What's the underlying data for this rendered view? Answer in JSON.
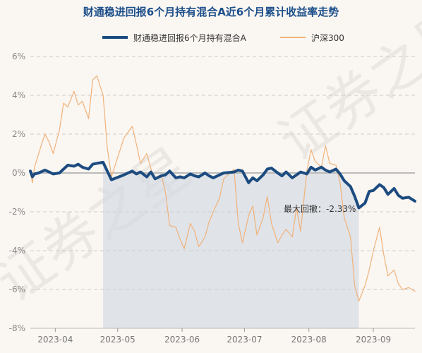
{
  "chart_data": {
    "type": "line",
    "title": "财通稳进回报6个月持有混合A近6个月累计收益率走势",
    "ylim": [
      -8,
      6
    ],
    "y_ticks": [
      "6%",
      "4%",
      "2%",
      "0%",
      "-2%",
      "-4%",
      "-6%",
      "-8%"
    ],
    "y_tick_values": [
      6,
      4,
      2,
      0,
      -2,
      -4,
      -6,
      -8
    ],
    "x_range": [
      "2023-03-20",
      "2023-09-21"
    ],
    "x_ticks": [
      "2023-04",
      "2023-05",
      "2023-06",
      "2023-07",
      "2023-08",
      "2023-09"
    ],
    "x_tick_dates": [
      "2023-04-01",
      "2023-05-01",
      "2023-06-01",
      "2023-07-01",
      "2023-08-01",
      "2023-09-01"
    ],
    "grid": "horizontal dashed",
    "legend_position": "top",
    "drawdown": {
      "label": "最大回撤：-2.33%",
      "start": "2023-04-24",
      "end": "2023-08-25"
    },
    "series": [
      {
        "name": "财通稳进回报6个月持有混合A",
        "color": "#1c4b80",
        "points": [
          [
            "2023-03-20",
            0.1
          ],
          [
            "2023-03-21",
            -0.2
          ],
          [
            "2023-03-22",
            -0.05
          ],
          [
            "2023-03-24",
            0.0
          ],
          [
            "2023-03-27",
            0.15
          ],
          [
            "2023-03-29",
            0.05
          ],
          [
            "2023-03-31",
            -0.05
          ],
          [
            "2023-04-03",
            0.0
          ],
          [
            "2023-04-05",
            0.2
          ],
          [
            "2023-04-07",
            0.4
          ],
          [
            "2023-04-10",
            0.35
          ],
          [
            "2023-04-12",
            0.45
          ],
          [
            "2023-04-14",
            0.3
          ],
          [
            "2023-04-17",
            0.2
          ],
          [
            "2023-04-19",
            0.45
          ],
          [
            "2023-04-21",
            0.5
          ],
          [
            "2023-04-24",
            0.55
          ],
          [
            "2023-04-26",
            0.1
          ],
          [
            "2023-04-28",
            -0.35
          ],
          [
            "2023-05-04",
            -0.1
          ],
          [
            "2023-05-08",
            0.1
          ],
          [
            "2023-05-10",
            -0.05
          ],
          [
            "2023-05-12",
            0.05
          ],
          [
            "2023-05-15",
            -0.2
          ],
          [
            "2023-05-17",
            0.05
          ],
          [
            "2023-05-19",
            -0.3
          ],
          [
            "2023-05-22",
            -0.15
          ],
          [
            "2023-05-24",
            -0.1
          ],
          [
            "2023-05-26",
            0.1
          ],
          [
            "2023-05-29",
            -0.25
          ],
          [
            "2023-05-31",
            -0.2
          ],
          [
            "2023-06-02",
            -0.25
          ],
          [
            "2023-06-05",
            -0.05
          ],
          [
            "2023-06-07",
            -0.15
          ],
          [
            "2023-06-09",
            -0.2
          ],
          [
            "2023-06-12",
            0.0
          ],
          [
            "2023-06-14",
            -0.15
          ],
          [
            "2023-06-16",
            -0.25
          ],
          [
            "2023-06-19",
            -0.1
          ],
          [
            "2023-06-21",
            0.0
          ],
          [
            "2023-06-26",
            0.05
          ],
          [
            "2023-06-28",
            0.15
          ],
          [
            "2023-06-30",
            0.1
          ],
          [
            "2023-07-03",
            -0.5
          ],
          [
            "2023-07-05",
            -0.25
          ],
          [
            "2023-07-07",
            -0.4
          ],
          [
            "2023-07-10",
            -0.1
          ],
          [
            "2023-07-12",
            0.2
          ],
          [
            "2023-07-14",
            0.25
          ],
          [
            "2023-07-17",
            0.0
          ],
          [
            "2023-07-19",
            -0.15
          ],
          [
            "2023-07-21",
            0.05
          ],
          [
            "2023-07-24",
            -0.25
          ],
          [
            "2023-07-26",
            -0.1
          ],
          [
            "2023-07-28",
            0.05
          ],
          [
            "2023-07-31",
            -0.05
          ],
          [
            "2023-08-02",
            0.3
          ],
          [
            "2023-08-04",
            0.15
          ],
          [
            "2023-08-07",
            0.3
          ],
          [
            "2023-08-09",
            0.15
          ],
          [
            "2023-08-11",
            0.05
          ],
          [
            "2023-08-14",
            0.2
          ],
          [
            "2023-08-16",
            -0.05
          ],
          [
            "2023-08-18",
            -0.4
          ],
          [
            "2023-08-21",
            -0.7
          ],
          [
            "2023-08-23",
            -1.2
          ],
          [
            "2023-08-25",
            -1.8
          ],
          [
            "2023-08-28",
            -1.55
          ],
          [
            "2023-08-30",
            -0.95
          ],
          [
            "2023-09-01",
            -0.9
          ],
          [
            "2023-09-04",
            -0.6
          ],
          [
            "2023-09-06",
            -0.75
          ],
          [
            "2023-09-08",
            -1.1
          ],
          [
            "2023-09-11",
            -0.8
          ],
          [
            "2023-09-13",
            -1.15
          ],
          [
            "2023-09-15",
            -1.3
          ],
          [
            "2023-09-18",
            -1.25
          ],
          [
            "2023-09-21",
            -1.45
          ]
        ]
      },
      {
        "name": "沪深300",
        "color": "#f0b27a",
        "points": [
          [
            "2023-03-20",
            0.1
          ],
          [
            "2023-03-21",
            -0.5
          ],
          [
            "2023-03-22",
            0.3
          ],
          [
            "2023-03-24",
            1.0
          ],
          [
            "2023-03-27",
            2.0
          ],
          [
            "2023-03-29",
            1.6
          ],
          [
            "2023-03-31",
            1.0
          ],
          [
            "2023-04-03",
            2.2
          ],
          [
            "2023-04-05",
            3.6
          ],
          [
            "2023-04-07",
            3.4
          ],
          [
            "2023-04-10",
            4.2
          ],
          [
            "2023-04-12",
            3.5
          ],
          [
            "2023-04-14",
            3.7
          ],
          [
            "2023-04-17",
            2.8
          ],
          [
            "2023-04-19",
            4.8
          ],
          [
            "2023-04-21",
            5.0
          ],
          [
            "2023-04-24",
            4.0
          ],
          [
            "2023-04-26",
            1.3
          ],
          [
            "2023-04-28",
            -0.2
          ],
          [
            "2023-05-04",
            1.8
          ],
          [
            "2023-05-08",
            2.4
          ],
          [
            "2023-05-10",
            1.5
          ],
          [
            "2023-05-12",
            0.5
          ],
          [
            "2023-05-15",
            1.0
          ],
          [
            "2023-05-17",
            0.2
          ],
          [
            "2023-05-19",
            -0.3
          ],
          [
            "2023-05-22",
            -0.1
          ],
          [
            "2023-05-24",
            -1.0
          ],
          [
            "2023-05-26",
            -2.7
          ],
          [
            "2023-05-29",
            -2.8
          ],
          [
            "2023-05-31",
            -3.4
          ],
          [
            "2023-06-02",
            -3.9
          ],
          [
            "2023-06-05",
            -2.6
          ],
          [
            "2023-06-07",
            -3.0
          ],
          [
            "2023-06-09",
            -3.8
          ],
          [
            "2023-06-12",
            -3.3
          ],
          [
            "2023-06-14",
            -2.5
          ],
          [
            "2023-06-16",
            -2.0
          ],
          [
            "2023-06-19",
            -1.3
          ],
          [
            "2023-06-21",
            -0.3
          ],
          [
            "2023-06-26",
            0.2
          ],
          [
            "2023-06-28",
            -2.6
          ],
          [
            "2023-06-30",
            -3.6
          ],
          [
            "2023-07-03",
            -2.2
          ],
          [
            "2023-07-05",
            -1.7
          ],
          [
            "2023-07-07",
            -3.2
          ],
          [
            "2023-07-10",
            -2.3
          ],
          [
            "2023-07-12",
            -1.2
          ],
          [
            "2023-07-14",
            -2.6
          ],
          [
            "2023-07-17",
            -3.6
          ],
          [
            "2023-07-19",
            -3.2
          ],
          [
            "2023-07-21",
            -2.9
          ],
          [
            "2023-07-24",
            -3.3
          ],
          [
            "2023-07-26",
            -1.8
          ],
          [
            "2023-07-28",
            -3.0
          ],
          [
            "2023-07-31",
            0.1
          ],
          [
            "2023-08-02",
            1.2
          ],
          [
            "2023-08-04",
            0.6
          ],
          [
            "2023-08-07",
            0.3
          ],
          [
            "2023-08-09",
            1.4
          ],
          [
            "2023-08-11",
            0.5
          ],
          [
            "2023-08-14",
            0.4
          ],
          [
            "2023-08-16",
            -0.5
          ],
          [
            "2023-08-18",
            -2.3
          ],
          [
            "2023-08-21",
            -3.3
          ],
          [
            "2023-08-23",
            -5.8
          ],
          [
            "2023-08-25",
            -6.6
          ],
          [
            "2023-08-28",
            -5.8
          ],
          [
            "2023-08-30",
            -5.0
          ],
          [
            "2023-09-01",
            -4.0
          ],
          [
            "2023-09-04",
            -2.8
          ],
          [
            "2023-09-06",
            -4.2
          ],
          [
            "2023-09-08",
            -5.3
          ],
          [
            "2023-09-11",
            -5.0
          ],
          [
            "2023-09-13",
            -5.7
          ],
          [
            "2023-09-15",
            -6.0
          ],
          [
            "2023-09-18",
            -5.9
          ],
          [
            "2023-09-21",
            -6.1
          ]
        ]
      }
    ]
  }
}
